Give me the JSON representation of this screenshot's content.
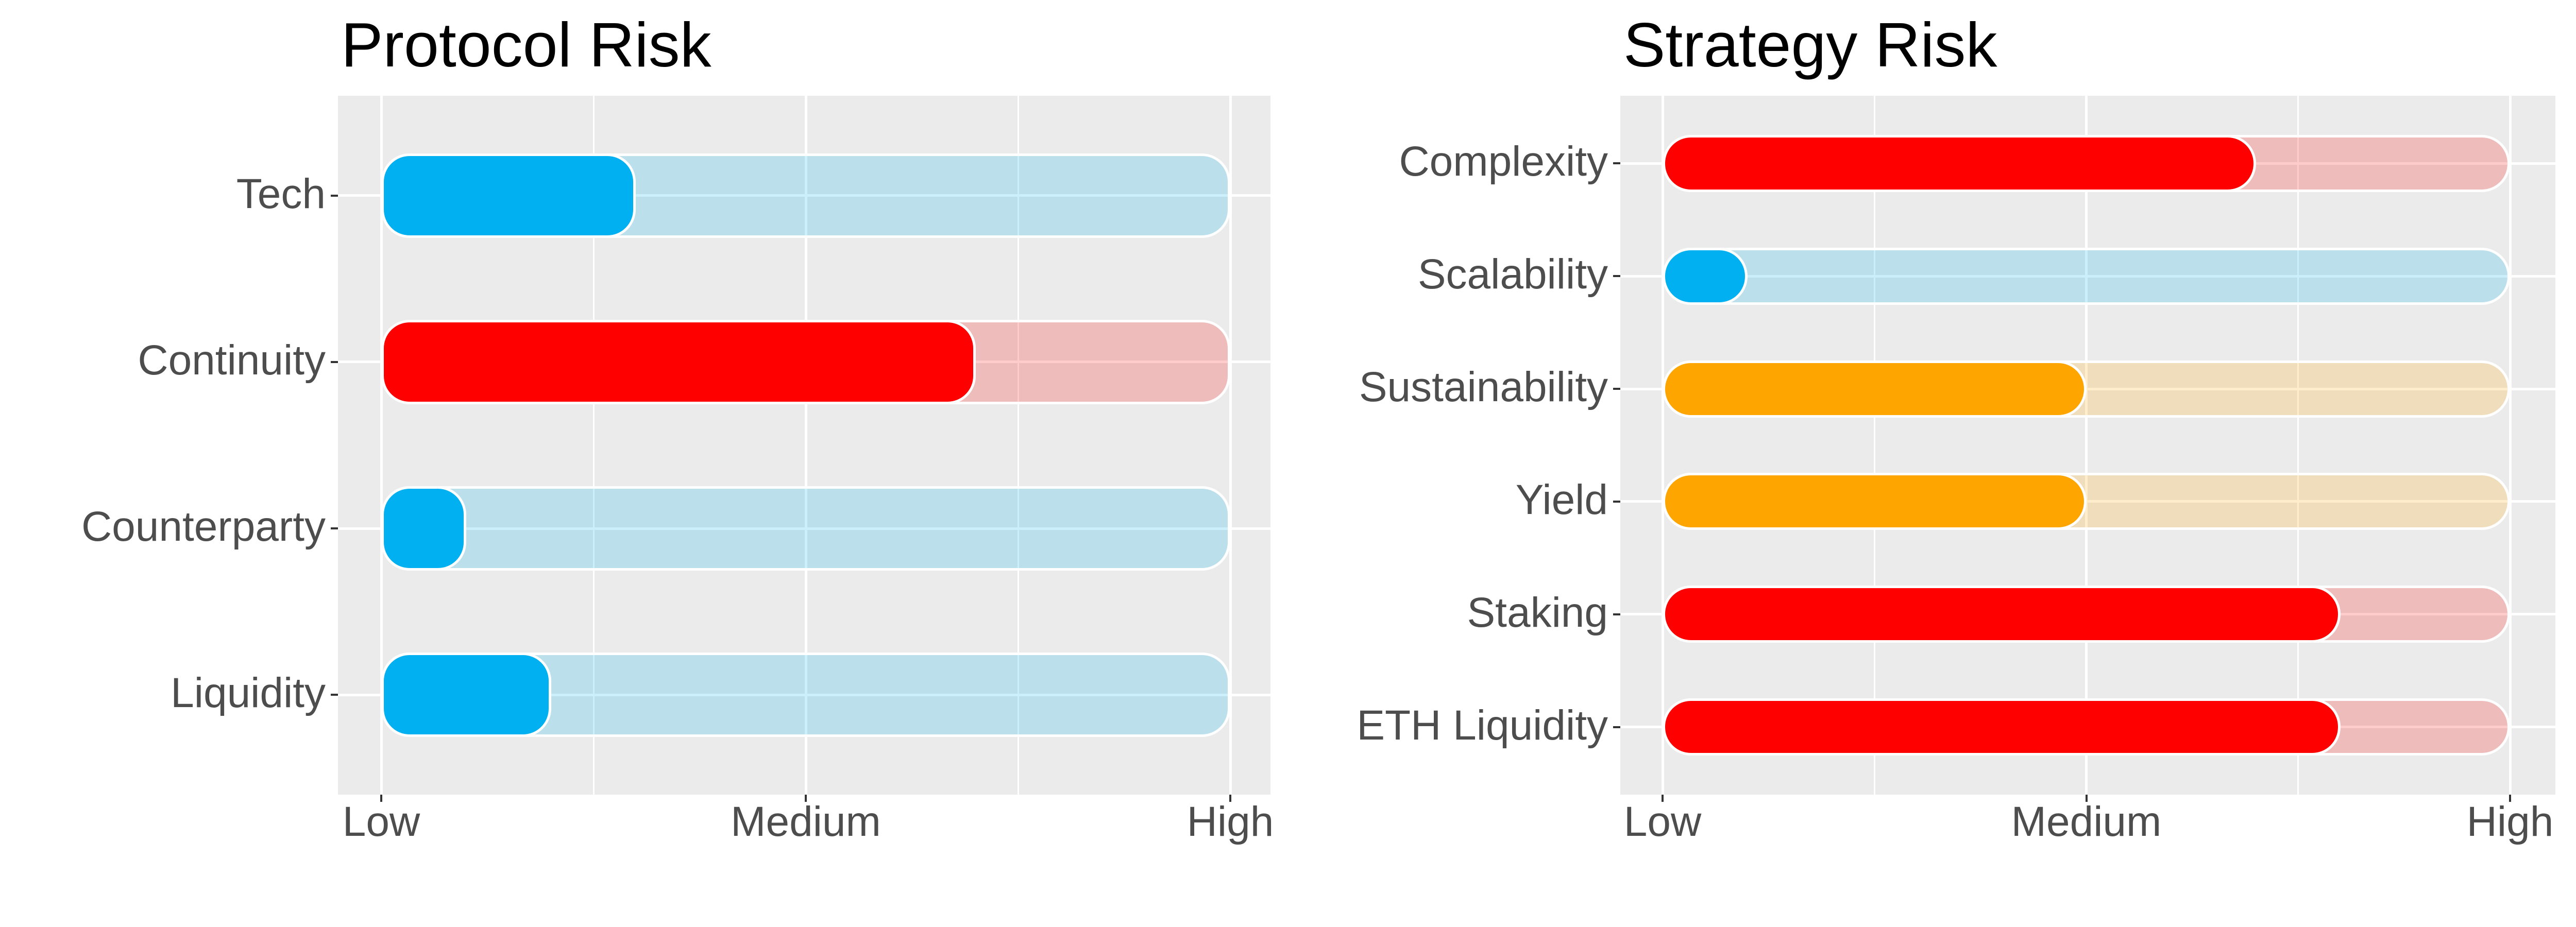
{
  "page": {
    "background_color": "#FFFFFF",
    "description": "Two horizontal rounded-bar risk charts on gray panels with white gridlines"
  },
  "palette": {
    "panel_background": "#EBEBEB",
    "gridline": "#FFFFFF",
    "bar_outline": "#FFFFFF",
    "axis_text": "#4D4D4D",
    "tick_mark": "#333333",
    "title_text": "#000000",
    "risk_blue": "#00B0F0",
    "risk_orange": "#FFA500",
    "risk_red": "#FF0000",
    "track_opacity": 0.2
  },
  "chart_data": [
    {
      "type": "bar",
      "orientation": "horizontal",
      "title": "Protocol Risk",
      "categories": [
        "Tech",
        "Continuity",
        "Counterparty",
        "Liquidity"
      ],
      "values": [
        3,
        7,
        1,
        2
      ],
      "bar_colors": [
        "#00B0F0",
        "#FF0000",
        "#00B0F0",
        "#00B0F0"
      ],
      "track": {
        "from": 0,
        "to": 10
      },
      "xlim": [
        0,
        10
      ],
      "x_ticks": [
        {
          "value": 0,
          "label": "Low"
        },
        {
          "value": 5,
          "label": "Medium"
        },
        {
          "value": 10,
          "label": "High"
        }
      ],
      "x_minor_gridlines": [
        2.5,
        7.5
      ],
      "grid": "white major and minor gridlines on gray panel, horizontal major line per category",
      "legend": "none",
      "value_scale_note": "0 = Low, 5 = Medium, 10 = High; each bar drawn over a full-range track of the same color at 20% opacity"
    },
    {
      "type": "bar",
      "orientation": "horizontal",
      "title": "Strategy Risk",
      "categories": [
        "Complexity",
        "Scalability",
        "Sustainability",
        "Yield",
        "Staking",
        "ETH Liquidity"
      ],
      "values": [
        7,
        1,
        5,
        5,
        8,
        8
      ],
      "bar_colors": [
        "#FF0000",
        "#00B0F0",
        "#FFA500",
        "#FFA500",
        "#FF0000",
        "#FF0000"
      ],
      "track": {
        "from": 0,
        "to": 10
      },
      "xlim": [
        0,
        10
      ],
      "x_ticks": [
        {
          "value": 0,
          "label": "Low"
        },
        {
          "value": 5,
          "label": "Medium"
        },
        {
          "value": 10,
          "label": "High"
        }
      ],
      "x_minor_gridlines": [
        2.5,
        7.5
      ],
      "grid": "white major and minor gridlines on gray panel, horizontal major line per category",
      "legend": "none",
      "value_scale_note": "0 = Low, 5 = Medium, 10 = High; each bar drawn over a full-range track of the same color at 20% opacity"
    }
  ]
}
